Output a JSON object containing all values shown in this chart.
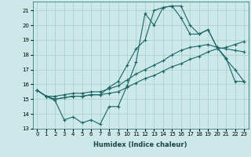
{
  "xlabel": "Humidex (Indice chaleur)",
  "bg_color": "#cce8e8",
  "grid_color": "#aacccc",
  "line_color": "#1a6666",
  "xlim": [
    -0.5,
    23.5
  ],
  "ylim": [
    13,
    21.6
  ],
  "yticks": [
    13,
    14,
    15,
    16,
    17,
    18,
    19,
    20,
    21
  ],
  "xticks": [
    0,
    1,
    2,
    3,
    4,
    5,
    6,
    7,
    8,
    9,
    10,
    11,
    12,
    13,
    14,
    15,
    16,
    17,
    18,
    19,
    20,
    21,
    22,
    23
  ],
  "line1_x": [
    0,
    1,
    2,
    3,
    4,
    5,
    6,
    7,
    8,
    9,
    10,
    11,
    12,
    13,
    14,
    15,
    16,
    17,
    18,
    19,
    20,
    21,
    22,
    23
  ],
  "line1_y": [
    15.6,
    15.2,
    14.9,
    13.6,
    13.8,
    13.4,
    13.6,
    13.3,
    14.5,
    14.5,
    15.9,
    17.5,
    20.8,
    20.0,
    21.2,
    21.3,
    21.3,
    20.0,
    19.4,
    19.7,
    18.5,
    17.7,
    17.0,
    16.2
  ],
  "line2_x": [
    0,
    1,
    2,
    3,
    4,
    5,
    6,
    7,
    8,
    9,
    10,
    11,
    12,
    13,
    14,
    15,
    16,
    17,
    18,
    19,
    20,
    21,
    22,
    23
  ],
  "line2_y": [
    15.6,
    15.2,
    15.0,
    15.1,
    15.2,
    15.2,
    15.3,
    15.3,
    15.8,
    16.2,
    17.3,
    18.4,
    19.0,
    21.0,
    21.2,
    21.3,
    20.5,
    19.4,
    19.4,
    19.7,
    18.5,
    17.8,
    16.2,
    16.2
  ],
  "line3_x": [
    0,
    1,
    2,
    3,
    4,
    5,
    6,
    7,
    8,
    9,
    10,
    11,
    12,
    13,
    14,
    15,
    16,
    17,
    18,
    19,
    20,
    21,
    22,
    23
  ],
  "line3_y": [
    15.6,
    15.2,
    15.2,
    15.3,
    15.4,
    15.4,
    15.5,
    15.5,
    15.7,
    15.9,
    16.3,
    16.7,
    17.0,
    17.3,
    17.6,
    18.0,
    18.3,
    18.5,
    18.6,
    18.7,
    18.5,
    18.4,
    18.3,
    18.2
  ],
  "line4_x": [
    0,
    1,
    2,
    3,
    4,
    5,
    6,
    7,
    8,
    9,
    10,
    11,
    12,
    13,
    14,
    15,
    16,
    17,
    18,
    19,
    20,
    21,
    22,
    23
  ],
  "line4_y": [
    15.6,
    15.2,
    15.0,
    15.1,
    15.2,
    15.2,
    15.3,
    15.3,
    15.4,
    15.5,
    15.8,
    16.1,
    16.4,
    16.6,
    16.9,
    17.2,
    17.4,
    17.7,
    17.9,
    18.2,
    18.4,
    18.5,
    18.7,
    18.9
  ]
}
